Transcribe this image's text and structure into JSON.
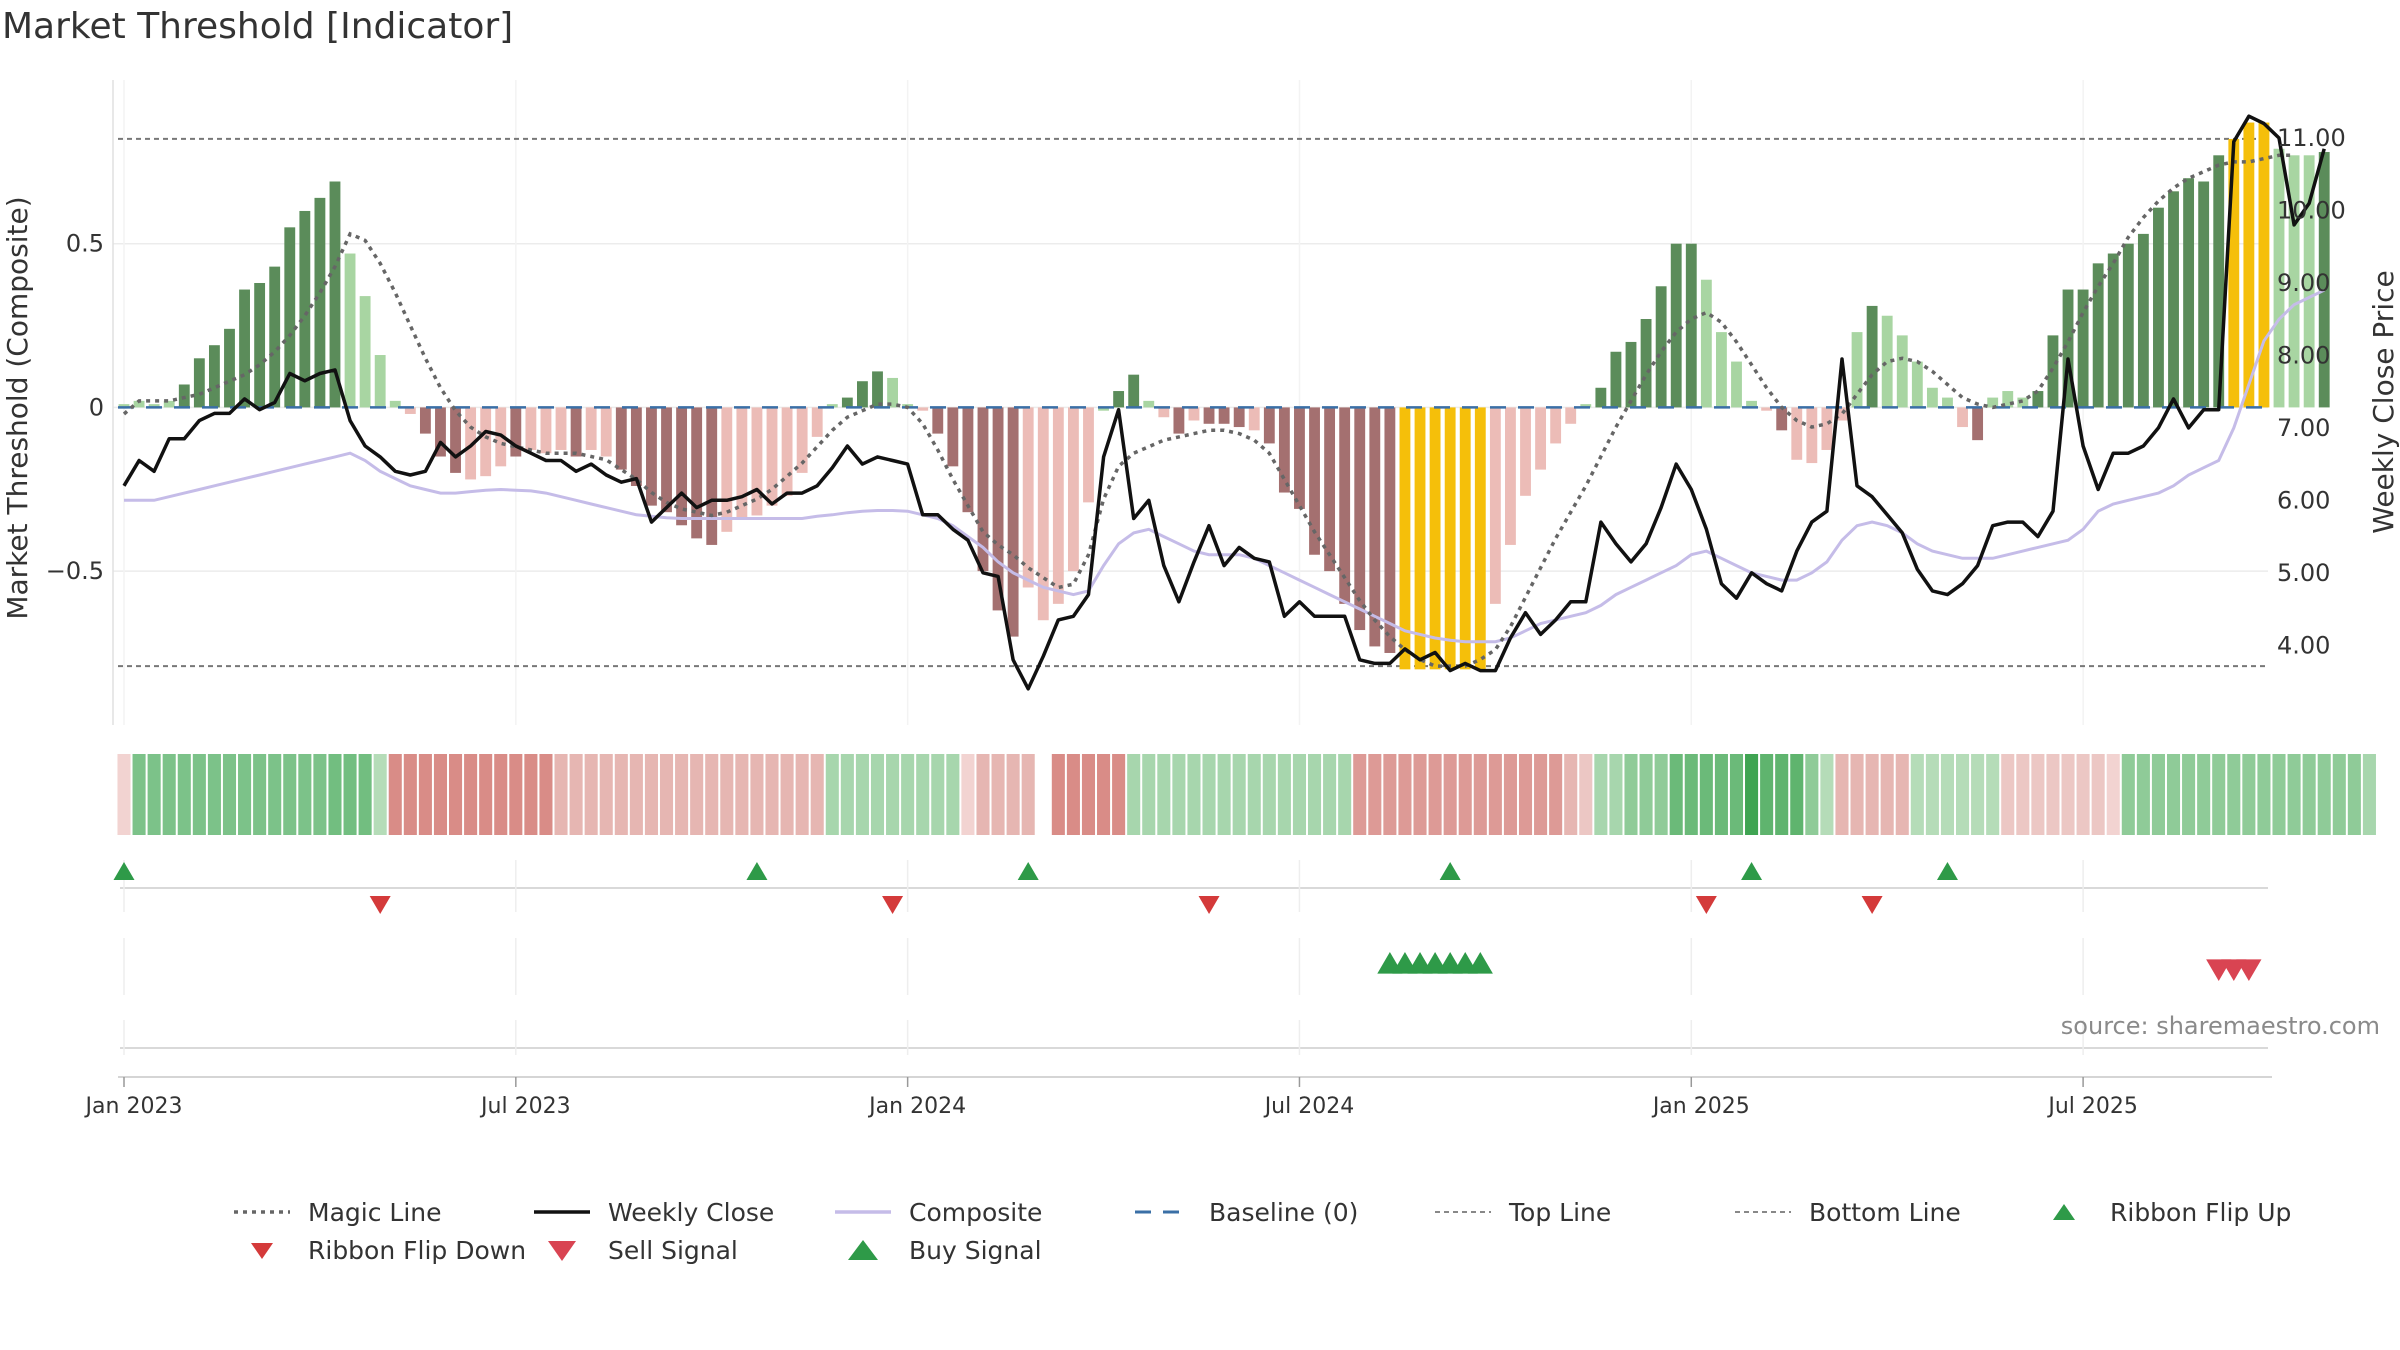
{
  "title": "Market Threshold [Indicator]",
  "source": "source: sharemaestro.com",
  "colors": {
    "bar_strong_pos": "#5b8c5a",
    "bar_weak_pos": "#a8d5a2",
    "bar_strong_neg": "#a47070",
    "bar_weak_neg": "#ecbcb7",
    "bar_extreme": "#f5bf0a",
    "magic_line": "#666666",
    "weekly_close": "#111111",
    "composite": "#c5bce8",
    "baseline": "#3a6fa6",
    "threshold": "#777777",
    "buy": "#2e9a48",
    "sell": "#d94452",
    "flip_up": "#2e9a48",
    "flip_down": "#d43a3a"
  },
  "chart_data": {
    "type": "bar",
    "title": "Market Threshold [Indicator]",
    "ylabel_left": "Market Threshold (Composite)",
    "ylabel_right": "Weekly Close Price",
    "ylim_left": [
      -0.97,
      1.0
    ],
    "ylim_right": [
      2.9,
      11.8
    ],
    "left_ticks": [
      {
        "v": 0.5,
        "label": "0.5"
      },
      {
        "v": 0,
        "label": "0"
      },
      {
        "v": -0.5,
        "label": "−0.5"
      }
    ],
    "right_ticks": [
      {
        "v": 11,
        "label": "11.00"
      },
      {
        "v": 10,
        "label": "10.00"
      },
      {
        "v": 9,
        "label": "9.00"
      },
      {
        "v": 8,
        "label": "8.00"
      },
      {
        "v": 7,
        "label": "7.00"
      },
      {
        "v": 6,
        "label": "6.00"
      },
      {
        "v": 5,
        "label": "5.00"
      },
      {
        "v": 4,
        "label": "4.00"
      }
    ],
    "x_ticks": [
      {
        "w": 0,
        "label": "Jan 2023"
      },
      {
        "w": 26,
        "label": "Jul 2023"
      },
      {
        "w": 52,
        "label": "Jan 2024"
      },
      {
        "w": 78,
        "label": "Jul 2024"
      },
      {
        "w": 104,
        "label": "Jan 2025"
      },
      {
        "w": 130,
        "label": "Jul 2025"
      }
    ],
    "top_line": 0.82,
    "bottom_line": -0.79,
    "baseline": 0,
    "composite_bars": [
      0.01,
      0.02,
      0.01,
      0.02,
      0.07,
      0.15,
      0.19,
      0.24,
      0.36,
      0.38,
      0.43,
      0.55,
      0.6,
      0.64,
      0.69,
      0.47,
      0.34,
      0.16,
      0.02,
      -0.02,
      -0.08,
      -0.15,
      -0.2,
      -0.22,
      -0.21,
      -0.18,
      -0.15,
      -0.13,
      -0.14,
      -0.13,
      -0.15,
      -0.13,
      -0.15,
      -0.19,
      -0.24,
      -0.3,
      -0.32,
      -0.36,
      -0.4,
      -0.42,
      -0.38,
      -0.34,
      -0.33,
      -0.3,
      -0.27,
      -0.2,
      -0.09,
      0.01,
      0.03,
      0.08,
      0.11,
      0.09,
      0.01,
      -0.01,
      -0.08,
      -0.18,
      -0.32,
      -0.5,
      -0.62,
      -0.7,
      -0.55,
      -0.65,
      -0.6,
      -0.5,
      -0.29,
      -0.01,
      0.05,
      0.1,
      0.02,
      -0.03,
      -0.08,
      -0.04,
      -0.05,
      -0.05,
      -0.06,
      -0.07,
      -0.11,
      -0.26,
      -0.31,
      -0.45,
      -0.5,
      -0.6,
      -0.68,
      -0.73,
      -0.75,
      -0.8,
      -0.8,
      -0.8,
      -0.8,
      -0.8,
      -0.8,
      -0.6,
      -0.42,
      -0.27,
      -0.19,
      -0.11,
      -0.05,
      0.01,
      0.06,
      0.17,
      0.2,
      0.27,
      0.37,
      0.5,
      0.5,
      0.39,
      0.23,
      0.14,
      0.02,
      -0.01,
      -0.07,
      -0.16,
      -0.17,
      -0.13,
      -0.04,
      0.23,
      0.31,
      0.28,
      0.22,
      0.14,
      0.06,
      0.03,
      -0.06,
      -0.1,
      0.03,
      0.05,
      0.03,
      0.05,
      0.22,
      0.36,
      0.36,
      0.44,
      0.47,
      0.5,
      0.53,
      0.61,
      0.66,
      0.7,
      0.69,
      0.77,
      0.82,
      0.87,
      0.87,
      0.79,
      0.77,
      0.77,
      0.78
    ],
    "bar_categories": [
      "wp",
      "wp",
      "wp",
      "wp",
      "sp",
      "sp",
      "sp",
      "sp",
      "sp",
      "sp",
      "sp",
      "sp",
      "sp",
      "sp",
      "sp",
      "wp",
      "wp",
      "wp",
      "wp",
      "wn",
      "sn",
      "sn",
      "sn",
      "wn",
      "wn",
      "wn",
      "sn",
      "wn",
      "wn",
      "wn",
      "sn",
      "wn",
      "wn",
      "sn",
      "sn",
      "sn",
      "sn",
      "sn",
      "sn",
      "sn",
      "wn",
      "wn",
      "wn",
      "wn",
      "wn",
      "wn",
      "wn",
      "wp",
      "sp",
      "sp",
      "sp",
      "wp",
      "wp",
      "wn",
      "sn",
      "sn",
      "sn",
      "sn",
      "sn",
      "sn",
      "wn",
      "wn",
      "wn",
      "wn",
      "wn",
      "wp",
      "sp",
      "sp",
      "wp",
      "wn",
      "sn",
      "wn",
      "sn",
      "sn",
      "sn",
      "wn",
      "sn",
      "sn",
      "sn",
      "sn",
      "sn",
      "sn",
      "sn",
      "sn",
      "sn",
      "ex",
      "ex",
      "ex",
      "ex",
      "ex",
      "ex",
      "wn",
      "wn",
      "wn",
      "wn",
      "wn",
      "wn",
      "wp",
      "sp",
      "sp",
      "sp",
      "sp",
      "sp",
      "sp",
      "sp",
      "wp",
      "wp",
      "wp",
      "wp",
      "wn",
      "sn",
      "wn",
      "wn",
      "wn",
      "wn",
      "wp",
      "sp",
      "wp",
      "wp",
      "wp",
      "wp",
      "wp",
      "wn",
      "sn",
      "wp",
      "wp",
      "wp",
      "sp",
      "sp",
      "sp",
      "sp",
      "sp",
      "sp",
      "sp",
      "sp",
      "sp",
      "sp",
      "sp",
      "sp",
      "sp",
      "ex",
      "ex",
      "ex",
      "wp",
      "wp",
      "wp",
      "sp"
    ],
    "weekly_close": [
      6.2,
      6.55,
      6.4,
      6.85,
      6.85,
      7.1,
      7.2,
      7.2,
      7.4,
      7.25,
      7.35,
      7.75,
      7.65,
      7.75,
      7.8,
      7.1,
      6.75,
      6.6,
      6.4,
      6.35,
      6.4,
      6.8,
      6.6,
      6.75,
      6.95,
      6.9,
      6.75,
      6.65,
      6.55,
      6.55,
      6.4,
      6.5,
      6.35,
      6.25,
      6.3,
      5.7,
      5.9,
      6.1,
      5.9,
      6.0,
      6.0,
      6.05,
      6.15,
      5.95,
      6.1,
      6.1,
      6.2,
      6.45,
      6.75,
      6.5,
      6.6,
      6.55,
      6.5,
      5.8,
      5.8,
      5.6,
      5.45,
      5.0,
      4.95,
      3.8,
      3.4,
      3.85,
      4.35,
      4.4,
      4.7,
      6.6,
      7.25,
      5.75,
      6.0,
      5.1,
      4.6,
      5.15,
      5.65,
      5.1,
      5.35,
      5.2,
      5.15,
      4.4,
      4.6,
      4.4,
      4.4,
      4.4,
      3.8,
      3.75,
      3.75,
      3.95,
      3.8,
      3.9,
      3.65,
      3.75,
      3.65,
      3.65,
      4.1,
      4.45,
      4.15,
      4.35,
      4.6,
      4.6,
      5.7,
      5.4,
      5.15,
      5.4,
      5.9,
      6.5,
      6.15,
      5.6,
      4.85,
      4.65,
      5.0,
      4.85,
      4.75,
      5.3,
      5.7,
      5.85,
      7.95,
      6.2,
      6.05,
      5.8,
      5.55,
      5.05,
      4.75,
      4.7,
      4.85,
      5.1,
      5.65,
      5.7,
      5.7,
      5.5,
      5.85,
      7.95,
      6.75,
      6.15,
      6.65,
      6.65,
      6.75,
      7.0,
      7.4,
      7.0,
      7.25,
      7.25,
      10.95,
      11.3,
      11.2,
      11.0,
      9.8,
      10.1,
      10.85
    ],
    "composite": [
      6.0,
      6.0,
      6.0,
      6.05,
      6.1,
      6.15,
      6.2,
      6.25,
      6.3,
      6.35,
      6.4,
      6.45,
      6.5,
      6.55,
      6.6,
      6.65,
      6.55,
      6.4,
      6.3,
      6.2,
      6.15,
      6.1,
      6.1,
      6.12,
      6.14,
      6.15,
      6.14,
      6.13,
      6.1,
      6.05,
      6.0,
      5.95,
      5.9,
      5.85,
      5.8,
      5.78,
      5.76,
      5.75,
      5.75,
      5.75,
      5.75,
      5.75,
      5.75,
      5.75,
      5.75,
      5.75,
      5.78,
      5.8,
      5.83,
      5.85,
      5.86,
      5.86,
      5.85,
      5.8,
      5.75,
      5.65,
      5.5,
      5.35,
      5.15,
      5.0,
      4.9,
      4.8,
      4.75,
      4.7,
      4.75,
      5.1,
      5.4,
      5.55,
      5.6,
      5.5,
      5.4,
      5.3,
      5.25,
      5.25,
      5.25,
      5.2,
      5.1,
      5.0,
      4.9,
      4.8,
      4.7,
      4.6,
      4.5,
      4.4,
      4.3,
      4.2,
      4.15,
      4.1,
      4.07,
      4.05,
      4.05,
      4.05,
      4.1,
      4.2,
      4.3,
      4.35,
      4.4,
      4.45,
      4.55,
      4.7,
      4.8,
      4.9,
      5.0,
      5.1,
      5.25,
      5.3,
      5.2,
      5.1,
      5.0,
      4.95,
      4.9,
      4.9,
      5.0,
      5.15,
      5.45,
      5.65,
      5.7,
      5.65,
      5.55,
      5.4,
      5.3,
      5.25,
      5.2,
      5.2,
      5.2,
      5.25,
      5.3,
      5.35,
      5.4,
      5.45,
      5.6,
      5.85,
      5.95,
      6.0,
      6.05,
      6.1,
      6.2,
      6.35,
      6.45,
      6.55,
      7.0,
      7.6,
      8.2,
      8.5,
      8.7,
      8.8,
      8.9
    ],
    "magic_line": [
      -0.02,
      0.02,
      0.02,
      0.02,
      0.03,
      0.04,
      0.06,
      0.08,
      0.1,
      0.13,
      0.17,
      0.22,
      0.28,
      0.35,
      0.43,
      0.53,
      0.51,
      0.44,
      0.35,
      0.25,
      0.15,
      0.06,
      -0.01,
      -0.06,
      -0.09,
      -0.11,
      -0.12,
      -0.13,
      -0.14,
      -0.14,
      -0.14,
      -0.15,
      -0.16,
      -0.19,
      -0.22,
      -0.26,
      -0.29,
      -0.31,
      -0.32,
      -0.33,
      -0.32,
      -0.3,
      -0.28,
      -0.25,
      -0.21,
      -0.17,
      -0.12,
      -0.07,
      -0.03,
      -0.01,
      0.01,
      0.01,
      0.0,
      -0.05,
      -0.13,
      -0.22,
      -0.3,
      -0.38,
      -0.42,
      -0.45,
      -0.49,
      -0.52,
      -0.55,
      -0.54,
      -0.45,
      -0.28,
      -0.18,
      -0.14,
      -0.12,
      -0.1,
      -0.09,
      -0.08,
      -0.07,
      -0.07,
      -0.08,
      -0.1,
      -0.14,
      -0.22,
      -0.3,
      -0.38,
      -0.45,
      -0.52,
      -0.59,
      -0.65,
      -0.7,
      -0.74,
      -0.77,
      -0.79,
      -0.79,
      -0.79,
      -0.77,
      -0.74,
      -0.67,
      -0.58,
      -0.49,
      -0.4,
      -0.32,
      -0.24,
      -0.15,
      -0.06,
      0.02,
      0.1,
      0.17,
      0.23,
      0.27,
      0.29,
      0.26,
      0.2,
      0.13,
      0.06,
      0.0,
      -0.04,
      -0.06,
      -0.05,
      -0.02,
      0.04,
      0.1,
      0.14,
      0.15,
      0.14,
      0.11,
      0.07,
      0.03,
      0.01,
      0.0,
      0.01,
      0.02,
      0.05,
      0.12,
      0.2,
      0.29,
      0.37,
      0.44,
      0.52,
      0.58,
      0.63,
      0.67,
      0.7,
      0.72,
      0.74,
      0.75,
      0.75,
      0.76,
      0.77,
      0.77
    ],
    "ribbon": [
      "#f2d3d1",
      "#7cc289",
      "#7cc289",
      "#7cc289",
      "#7cc289",
      "#7cc289",
      "#7cc289",
      "#7cc289",
      "#7cc289",
      "#7cc289",
      "#7cc289",
      "#7cc289",
      "#7cc289",
      "#7cc289",
      "#72be80",
      "#72be80",
      "#72be80",
      "#b5dcb8",
      "#d98c87",
      "#d98c87",
      "#d98c87",
      "#d98c87",
      "#d98c87",
      "#d98c87",
      "#d98c87",
      "#d98c87",
      "#d98c87",
      "#d98c87",
      "#d98c87",
      "#e6b6b2",
      "#e6b6b2",
      "#e6b6b2",
      "#e6b6b2",
      "#e6b6b2",
      "#e6b6b2",
      "#e6b6b2",
      "#e6b6b2",
      "#e6b6b2",
      "#e6b6b2",
      "#e6b6b2",
      "#e6b6b2",
      "#e6b6b2",
      "#e6b6b2",
      "#e6b6b2",
      "#e6b6b2",
      "#e6b6b2",
      "#e6b6b2",
      "#a7d6ad",
      "#a7d6ad",
      "#a7d6ad",
      "#a7d6ad",
      "#a7d6ad",
      "#a7d6ad",
      "#a7d6ad",
      "#a7d6ad",
      "#a7d6ad",
      "#f2d3d1",
      "#e6b6b2",
      "#e6b6b2",
      "#e6b6b2",
      "#e6b6b2",
      "#ffffff",
      "#d98c87",
      "#d98c87",
      "#d98c87",
      "#d98c87",
      "#d98c87",
      "#a7d6ad",
      "#a7d6ad",
      "#a7d6ad",
      "#a7d6ad",
      "#a7d6ad",
      "#a7d6ad",
      "#a7d6ad",
      "#a7d6ad",
      "#a7d6ad",
      "#a7d6ad",
      "#a7d6ad",
      "#a7d6ad",
      "#a7d6ad",
      "#a7d6ad",
      "#a7d6ad",
      "#dd9a96",
      "#dd9a96",
      "#dd9a96",
      "#dd9a96",
      "#dd9a96",
      "#dd9a96",
      "#dd9a96",
      "#dd9a96",
      "#dd9a96",
      "#dd9a96",
      "#dd9a96",
      "#dd9a96",
      "#dd9a96",
      "#dd9a96",
      "#e6b6b2",
      "#ecc7c4",
      "#a7d6ad",
      "#a7d6ad",
      "#8fcb98",
      "#8fcb98",
      "#8fcb98",
      "#6bba79",
      "#6bba79",
      "#6bba79",
      "#6bba79",
      "#6bba79",
      "#3fa452",
      "#5fb46e",
      "#5fb46e",
      "#5fb46e",
      "#8fcb98",
      "#b5dcb8",
      "#e6b6b2",
      "#e6b6b2",
      "#e6b6b2",
      "#e6b6b2",
      "#e6b6b2",
      "#b5dcb8",
      "#b5dcb8",
      "#b5dcb8",
      "#b5dcb8",
      "#b5dcb8",
      "#b5dcb8",
      "#ecc7c4",
      "#ecc7c4",
      "#ecc7c4",
      "#ecc7c4",
      "#ecc7c4",
      "#ecc7c4",
      "#ecc7c4",
      "#f2d3d1",
      "#8fcb98",
      "#8fcb98",
      "#8fcb98",
      "#8fcb98",
      "#8fcb98",
      "#8fcb98",
      "#8fcb98",
      "#8fcb98",
      "#8fcb98",
      "#8fcb98",
      "#8fcb98",
      "#8fcb98",
      "#8fcb98",
      "#8fcb98",
      "#8fcb98",
      "#8fcb98",
      "#a7d6ad"
    ],
    "ribbon_flip_up": [
      0,
      42,
      60,
      88,
      108,
      121
    ],
    "ribbon_flip_down": [
      17,
      51,
      72,
      105,
      116
    ],
    "buy_signals": [
      84,
      85,
      86,
      87,
      88,
      89,
      90
    ],
    "sell_signals": [
      139,
      140,
      141
    ]
  },
  "legend": [
    {
      "key": "magic",
      "label": "Magic Line"
    },
    {
      "key": "close",
      "label": "Weekly Close"
    },
    {
      "key": "composite",
      "label": "Composite"
    },
    {
      "key": "baseline",
      "label": "Baseline (0)"
    },
    {
      "key": "top",
      "label": "Top Line"
    },
    {
      "key": "bottom",
      "label": "Bottom Line"
    },
    {
      "key": "flip_up",
      "label": "Ribbon Flip Up"
    },
    {
      "key": "flip_down",
      "label": "Ribbon Flip Down"
    },
    {
      "key": "sell",
      "label": "Sell Signal"
    },
    {
      "key": "buy",
      "label": "Buy Signal"
    }
  ]
}
